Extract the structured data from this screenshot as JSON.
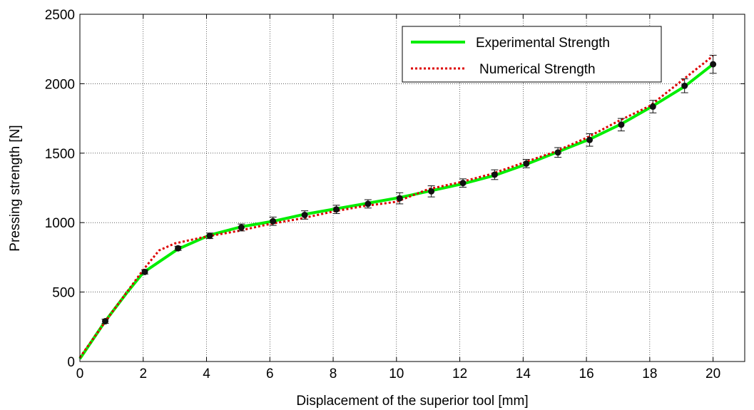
{
  "chart_data": {
    "type": "line",
    "title": "",
    "xlabel": "Displacement of the superior tool [mm]",
    "ylabel": "Pressing strength [N]",
    "xlim": [
      0,
      21
    ],
    "ylim": [
      0,
      2500
    ],
    "xticks": [
      0,
      2,
      4,
      6,
      8,
      10,
      12,
      14,
      16,
      18,
      20
    ],
    "yticks": [
      0,
      500,
      1000,
      1500,
      2000,
      2500
    ],
    "grid": true,
    "legend_position": "top-right",
    "series": [
      {
        "name": "Experimental Strength",
        "style": "solid",
        "color": "#00ee00",
        "x": [
          0,
          0.8,
          1.5,
          2,
          3.1,
          4.1,
          5.1,
          6.1,
          7.1,
          8.1,
          9.1,
          10.1,
          11.1,
          12.1,
          13.1,
          14.1,
          15.1,
          16.1,
          17.1,
          18.1,
          19.1,
          20
        ],
        "y": [
          20,
          290,
          500,
          640,
          810,
          910,
          970,
          1010,
          1060,
          1100,
          1140,
          1180,
          1230,
          1280,
          1340,
          1420,
          1510,
          1600,
          1710,
          1840,
          1980,
          2140
        ]
      },
      {
        "name": "Numerical Strength",
        "style": "dotted",
        "color": "#dd0000",
        "x": [
          0,
          1,
          2,
          2.5,
          3,
          4,
          5,
          6,
          7,
          8,
          9,
          10,
          11,
          12,
          13,
          14,
          15,
          16,
          17,
          18,
          19,
          20
        ],
        "y": [
          30,
          350,
          660,
          800,
          850,
          900,
          940,
          990,
          1030,
          1080,
          1120,
          1150,
          1240,
          1290,
          1350,
          1430,
          1510,
          1610,
          1730,
          1840,
          2020,
          2200
        ]
      },
      {
        "name": "",
        "style": "errorbar",
        "color": "#111111",
        "x": [
          0.8,
          2.05,
          3.1,
          4.1,
          5.1,
          6.1,
          7.1,
          8.1,
          9.1,
          10.1,
          11.1,
          12.1,
          13.1,
          14.1,
          15.1,
          16.1,
          17.1,
          18.1,
          19.1,
          20
        ],
        "y": [
          290,
          645,
          815,
          905,
          965,
          1010,
          1055,
          1095,
          1135,
          1175,
          1225,
          1285,
          1345,
          1425,
          1505,
          1595,
          1705,
          1835,
          1985,
          2140
        ],
        "err": [
          15,
          15,
          15,
          20,
          25,
          30,
          30,
          30,
          30,
          40,
          40,
          30,
          35,
          30,
          35,
          45,
          45,
          45,
          50,
          65
        ]
      }
    ]
  }
}
